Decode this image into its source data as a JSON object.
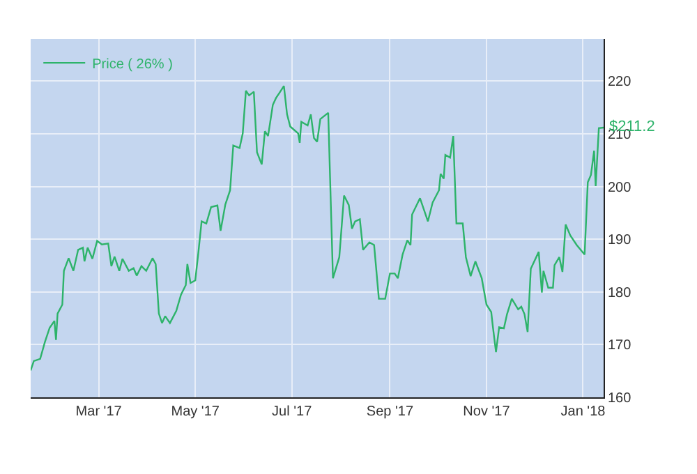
{
  "chart_data": {
    "type": "line",
    "x": [
      "2017-01-17",
      "2017-01-19",
      "2017-01-23",
      "2017-01-26",
      "2017-01-29",
      "2017-02-01",
      "2017-02-02",
      "2017-02-03",
      "2017-02-06",
      "2017-02-07",
      "2017-02-10",
      "2017-02-13",
      "2017-02-16",
      "2017-02-19",
      "2017-02-20",
      "2017-02-22",
      "2017-02-25",
      "2017-02-28",
      "2017-03-03",
      "2017-03-07",
      "2017-03-09",
      "2017-03-11",
      "2017-03-14",
      "2017-03-16",
      "2017-03-20",
      "2017-03-23",
      "2017-03-25",
      "2017-03-28",
      "2017-03-31",
      "2017-04-04",
      "2017-04-06",
      "2017-04-08",
      "2017-04-10",
      "2017-04-12",
      "2017-04-15",
      "2017-04-19",
      "2017-04-22",
      "2017-04-25",
      "2017-04-26",
      "2017-04-28",
      "2017-05-01",
      "2017-05-03",
      "2017-05-05",
      "2017-05-08",
      "2017-05-11",
      "2017-05-15",
      "2017-05-17",
      "2017-05-20",
      "2017-05-23",
      "2017-05-25",
      "2017-05-29",
      "2017-05-31",
      "2017-06-02",
      "2017-06-04",
      "2017-06-07",
      "2017-06-09",
      "2017-06-12",
      "2017-06-14",
      "2017-06-16",
      "2017-06-19",
      "2017-06-21",
      "2017-06-23",
      "2017-06-26",
      "2017-06-28",
      "2017-06-30",
      "2017-07-05",
      "2017-07-06",
      "2017-07-07",
      "2017-07-11",
      "2017-07-13",
      "2017-07-15",
      "2017-07-17",
      "2017-07-19",
      "2017-07-24",
      "2017-07-27",
      "2017-07-31",
      "2017-08-03",
      "2017-08-06",
      "2017-08-08",
      "2017-08-10",
      "2017-08-13",
      "2017-08-15",
      "2017-08-19",
      "2017-08-22",
      "2017-08-25",
      "2017-08-29",
      "2017-09-01",
      "2017-09-04",
      "2017-09-06",
      "2017-09-09",
      "2017-09-12",
      "2017-09-14",
      "2017-09-15",
      "2017-09-20",
      "2017-09-25",
      "2017-09-28",
      "2017-10-02",
      "2017-10-03",
      "2017-10-05",
      "2017-10-06",
      "2017-10-09",
      "2017-10-11",
      "2017-10-13",
      "2017-10-17",
      "2017-10-19",
      "2017-10-22",
      "2017-10-25",
      "2017-10-29",
      "2017-11-01",
      "2017-11-04",
      "2017-11-05",
      "2017-11-07",
      "2017-11-09",
      "2017-11-12",
      "2017-11-14",
      "2017-11-17",
      "2017-11-21",
      "2017-11-23",
      "2017-11-25",
      "2017-11-27",
      "2017-11-29",
      "2017-12-04",
      "2017-12-06",
      "2017-12-07",
      "2017-12-10",
      "2017-12-13",
      "2017-12-14",
      "2017-12-17",
      "2017-12-19",
      "2017-12-21",
      "2017-12-24",
      "2017-12-28",
      "2018-01-02",
      "2018-01-04",
      "2018-01-06",
      "2018-01-08",
      "2018-01-09",
      "2018-01-11",
      "2018-01-14"
    ],
    "series": [
      {
        "name": "Price ( 26% )",
        "color": "#2db36a",
        "values": [
          165.1,
          166.9,
          167.3,
          170.5,
          173.2,
          174.5,
          170.9,
          175.9,
          177.6,
          184,
          186.4,
          184,
          188,
          188.4,
          185.8,
          188.4,
          186.3,
          189.7,
          189,
          189.2,
          184.9,
          186.7,
          184,
          186.3,
          184,
          184.5,
          183.1,
          184.9,
          184,
          186.4,
          185.3,
          175.9,
          174.1,
          175.4,
          174.1,
          176.4,
          179.5,
          181.3,
          185.3,
          181.7,
          182.2,
          187.6,
          193.4,
          193,
          196.1,
          196.4,
          191.6,
          196.6,
          199.3,
          207.8,
          207.3,
          210.1,
          218.2,
          217.3,
          218,
          206.5,
          204.2,
          210.5,
          209.6,
          215.5,
          216.8,
          217.7,
          219.1,
          213.7,
          211.4,
          210.1,
          208.3,
          212.3,
          211.6,
          213.7,
          209.2,
          208.5,
          212.8,
          214,
          182.6,
          186.6,
          198.3,
          196.5,
          192,
          193.4,
          193.8,
          188,
          189.4,
          188.9,
          178.7,
          178.7,
          183.5,
          183.5,
          182.6,
          187.1,
          189.8,
          188.9,
          194.7,
          197.8,
          193.4,
          197,
          199.3,
          202.4,
          201.5,
          206,
          205.5,
          209.6,
          193,
          193,
          186.6,
          183,
          185.8,
          182.6,
          177.6,
          176.2,
          173.5,
          168.6,
          173.3,
          173.1,
          175.8,
          178.7,
          176.7,
          177.2,
          175.8,
          172.4,
          184.4,
          187.6,
          179.9,
          184,
          180.8,
          180.8,
          185.1,
          186.6,
          183.8,
          192.8,
          190.7,
          188.9,
          187.1,
          200.8,
          202.2,
          206.8,
          200.1,
          211.1,
          211.2
        ]
      }
    ],
    "xlim": [
      "2017-01-17",
      "2018-01-14"
    ],
    "xticks": [
      {
        "value": "2017-03-01",
        "label": "Mar '17"
      },
      {
        "value": "2017-05-01",
        "label": "May '17"
      },
      {
        "value": "2017-07-01",
        "label": "Jul '17"
      },
      {
        "value": "2017-09-01",
        "label": "Sep '17"
      },
      {
        "value": "2017-11-01",
        "label": "Nov '17"
      },
      {
        "value": "2018-01-01",
        "label": "Jan '18"
      }
    ],
    "ylim": [
      160,
      228
    ],
    "yticks": [
      160,
      170,
      180,
      190,
      200,
      210,
      220
    ],
    "annotations": [
      {
        "text": "$211.2",
        "x": "2018-01-14",
        "y": 211.2
      }
    ],
    "grid": true,
    "legend": "top left",
    "marker": "none",
    "line_style": "solid"
  }
}
